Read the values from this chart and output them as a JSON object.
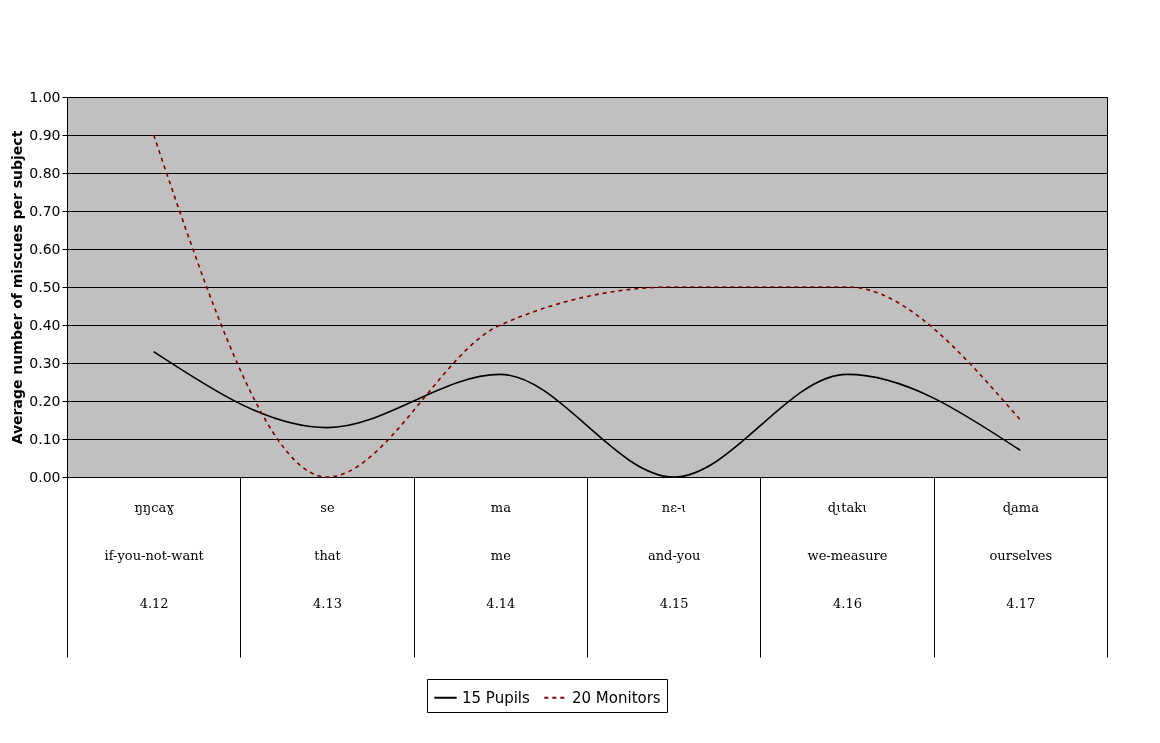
{
  "chart_data": {
    "type": "line",
    "ylabel": "Average number of miscues per subject",
    "categories": [
      "ŋŋcaɣ\nif-you-not-want\n4.12",
      "se\nthat\n4.13",
      "ma\nme\n4.14",
      "nɛ-ɩ\nand-you\n4.15",
      "ɖɩtakɩ\nwe-measure\n4.16",
      "ɖama\nourselves\n4.17"
    ],
    "series": [
      {
        "name": "15 Pupils",
        "color": "#000000",
        "line_style": "solid",
        "values": [
          0.33,
          0.13,
          0.27,
          0.0,
          0.27,
          0.07
        ]
      },
      {
        "name": "20 Monitors",
        "color": "#800000",
        "line_style": "dashed",
        "values": [
          0.9,
          0.0,
          0.4,
          0.5,
          0.5,
          0.15
        ]
      }
    ],
    "ylim": [
      0,
      1
    ],
    "yticks": [
      {
        "value": 0,
        "label": "0.00"
      },
      {
        "value": 0.1,
        "label": "0.10"
      },
      {
        "value": 0.2,
        "label": "0.20"
      },
      {
        "value": 0.3,
        "label": "0.30"
      },
      {
        "value": 0.4,
        "label": "0.40"
      },
      {
        "value": 0.5,
        "label": "0.50"
      },
      {
        "value": 0.6,
        "label": "0.60"
      },
      {
        "value": 0.7,
        "label": "0.70"
      },
      {
        "value": 0.8,
        "label": "0.80"
      },
      {
        "value": 0.9,
        "label": "0.90"
      },
      {
        "value": 1,
        "label": "1.00"
      }
    ],
    "grid": "y",
    "legend": "bottom",
    "marker": "none"
  }
}
